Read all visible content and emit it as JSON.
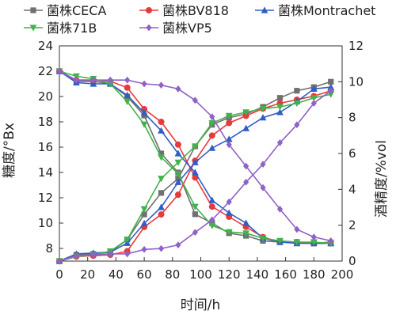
{
  "chart_data": {
    "type": "line",
    "xlabel": "时间/h",
    "ylabel_left": "糖度/°Bx",
    "ylabel_right": "酒精度/%vol",
    "xlim": [
      0,
      200
    ],
    "ylim_left": [
      7,
      24
    ],
    "ylim_right": [
      0,
      12
    ],
    "x_ticks": [
      "0",
      "20",
      "40",
      "60",
      "80",
      "100",
      "120",
      "140",
      "160",
      "180",
      "200"
    ],
    "y_ticks_left": [
      "8",
      "10",
      "12",
      "14",
      "16",
      "18",
      "20",
      "22",
      "24"
    ],
    "y_ticks_right": [
      "0",
      "2",
      "4",
      "6",
      "8",
      "10",
      "12"
    ],
    "legend_position": "top",
    "grid": false,
    "series": [
      {
        "name": "菌株CECA",
        "color": "#707070",
        "marker": "square",
        "sugar": [
          [
            0,
            22.0
          ],
          [
            12,
            21.2
          ],
          [
            24,
            21.2
          ],
          [
            36,
            21.0
          ],
          [
            48,
            20.0
          ],
          [
            60,
            18.5
          ],
          [
            72,
            15.5
          ],
          [
            84,
            14.0
          ],
          [
            96,
            10.7
          ],
          [
            108,
            10.0
          ],
          [
            120,
            9.2
          ],
          [
            132,
            9.0
          ],
          [
            144,
            8.6
          ],
          [
            156,
            8.5
          ],
          [
            168,
            8.5
          ],
          [
            180,
            8.4
          ],
          [
            192,
            8.4
          ]
        ],
        "alcohol": [
          [
            0,
            0
          ],
          [
            12,
            0.35
          ],
          [
            24,
            0.4
          ],
          [
            36,
            0.5
          ],
          [
            48,
            1.2
          ],
          [
            60,
            2.6
          ],
          [
            72,
            3.8
          ],
          [
            84,
            4.6
          ],
          [
            96,
            6.4
          ],
          [
            108,
            7.6
          ],
          [
            120,
            8.0
          ],
          [
            132,
            8.2
          ],
          [
            144,
            8.6
          ],
          [
            156,
            9.1
          ],
          [
            168,
            9.5
          ],
          [
            180,
            9.7
          ],
          [
            192,
            10.0
          ]
        ]
      },
      {
        "name": "菌株BV818",
        "color": "#e83a3a",
        "marker": "circle",
        "sugar": [
          [
            0,
            22.0
          ],
          [
            12,
            21.3
          ],
          [
            24,
            21.3
          ],
          [
            36,
            21.2
          ],
          [
            48,
            20.7
          ],
          [
            60,
            19.0
          ],
          [
            72,
            18.0
          ],
          [
            84,
            16.2
          ],
          [
            96,
            13.6
          ],
          [
            108,
            11.3
          ],
          [
            120,
            10.5
          ],
          [
            132,
            9.7
          ],
          [
            144,
            8.9
          ],
          [
            156,
            8.5
          ],
          [
            168,
            8.5
          ],
          [
            180,
            8.4
          ],
          [
            192,
            8.5
          ]
        ],
        "alcohol": [
          [
            0,
            0
          ],
          [
            12,
            0.25
          ],
          [
            24,
            0.3
          ],
          [
            36,
            0.35
          ],
          [
            48,
            0.55
          ],
          [
            60,
            1.9
          ],
          [
            72,
            2.6
          ],
          [
            84,
            3.7
          ],
          [
            96,
            5.6
          ],
          [
            108,
            7.0
          ],
          [
            120,
            7.7
          ],
          [
            132,
            8.1
          ],
          [
            144,
            8.5
          ],
          [
            156,
            8.8
          ],
          [
            168,
            9.0
          ],
          [
            180,
            9.2
          ],
          [
            192,
            9.5
          ]
        ]
      },
      {
        "name": "菌株Montrachet",
        "color": "#2f5ec4",
        "marker": "triangle-up",
        "sugar": [
          [
            0,
            22.0
          ],
          [
            12,
            21.1
          ],
          [
            24,
            21.0
          ],
          [
            36,
            21.0
          ],
          [
            48,
            20.1
          ],
          [
            60,
            18.7
          ],
          [
            72,
            17.3
          ],
          [
            84,
            15.5
          ],
          [
            96,
            14.0
          ],
          [
            108,
            11.8
          ],
          [
            120,
            10.8
          ],
          [
            132,
            10.0
          ],
          [
            144,
            8.8
          ],
          [
            156,
            8.5
          ],
          [
            168,
            8.4
          ],
          [
            180,
            8.4
          ],
          [
            192,
            8.4
          ]
        ],
        "alcohol": [
          [
            0,
            0
          ],
          [
            12,
            0.4
          ],
          [
            24,
            0.45
          ],
          [
            36,
            0.5
          ],
          [
            48,
            1.0
          ],
          [
            60,
            2.1
          ],
          [
            72,
            3.0
          ],
          [
            84,
            4.4
          ],
          [
            96,
            5.5
          ],
          [
            108,
            6.3
          ],
          [
            120,
            6.8
          ],
          [
            132,
            7.4
          ],
          [
            144,
            8.0
          ],
          [
            156,
            8.3
          ],
          [
            168,
            8.9
          ],
          [
            180,
            9.6
          ],
          [
            192,
            9.7
          ]
        ]
      },
      {
        "name": "菌株71B",
        "color": "#41b34a",
        "marker": "triangle-down",
        "sugar": [
          [
            0,
            22.0
          ],
          [
            12,
            21.6
          ],
          [
            24,
            21.4
          ],
          [
            36,
            21.0
          ],
          [
            48,
            19.6
          ],
          [
            60,
            17.8
          ],
          [
            72,
            15.2
          ],
          [
            84,
            13.9
          ],
          [
            96,
            11.3
          ],
          [
            108,
            9.8
          ],
          [
            120,
            9.3
          ],
          [
            132,
            9.2
          ],
          [
            144,
            8.8
          ],
          [
            156,
            8.6
          ],
          [
            168,
            8.5
          ],
          [
            180,
            8.5
          ],
          [
            192,
            8.4
          ]
        ],
        "alcohol": [
          [
            0,
            0
          ],
          [
            12,
            0.25
          ],
          [
            24,
            0.35
          ],
          [
            36,
            0.55
          ],
          [
            48,
            1.2
          ],
          [
            60,
            2.9
          ],
          [
            72,
            4.6
          ],
          [
            84,
            5.5
          ],
          [
            96,
            6.4
          ],
          [
            108,
            7.7
          ],
          [
            120,
            8.1
          ],
          [
            132,
            8.3
          ],
          [
            144,
            8.5
          ],
          [
            156,
            8.6
          ],
          [
            168,
            8.8
          ],
          [
            180,
            9.1
          ],
          [
            192,
            9.3
          ]
        ]
      },
      {
        "name": "菌株VP5",
        "color": "#8f62c7",
        "marker": "diamond",
        "sugar": [
          [
            0,
            22.0
          ],
          [
            12,
            21.3
          ],
          [
            24,
            21.3
          ],
          [
            36,
            21.3
          ],
          [
            48,
            21.3
          ],
          [
            60,
            21.0
          ],
          [
            72,
            20.9
          ],
          [
            84,
            20.6
          ],
          [
            96,
            19.7
          ],
          [
            108,
            18.4
          ],
          [
            120,
            16.2
          ],
          [
            132,
            14.5
          ],
          [
            144,
            12.8
          ],
          [
            156,
            11.1
          ],
          [
            168,
            9.5
          ],
          [
            180,
            8.9
          ],
          [
            192,
            8.6
          ]
        ],
        "alcohol": [
          [
            0,
            0
          ],
          [
            12,
            0.3
          ],
          [
            24,
            0.35
          ],
          [
            36,
            0.4
          ],
          [
            48,
            0.4
          ],
          [
            60,
            0.65
          ],
          [
            72,
            0.7
          ],
          [
            84,
            0.9
          ],
          [
            96,
            1.6
          ],
          [
            108,
            2.3
          ],
          [
            120,
            3.3
          ],
          [
            132,
            4.4
          ],
          [
            144,
            5.4
          ],
          [
            156,
            6.6
          ],
          [
            168,
            7.6
          ],
          [
            180,
            8.8
          ],
          [
            192,
            9.5
          ]
        ]
      }
    ]
  }
}
